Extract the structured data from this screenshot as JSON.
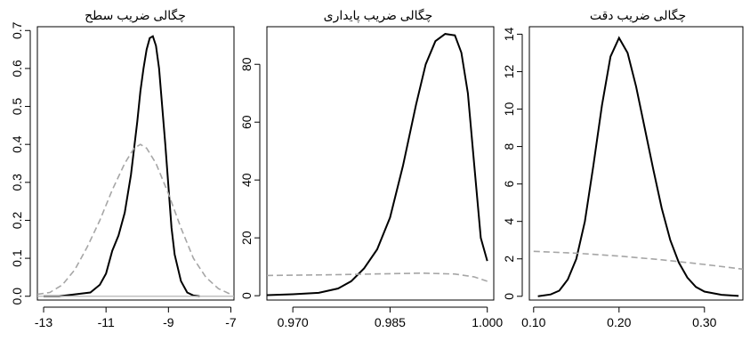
{
  "chart_data": [
    {
      "type": "line",
      "title": "چگالی ضریب سطح",
      "xlabel": "",
      "ylabel": "",
      "xlim": [
        -13.2,
        -6.9
      ],
      "ylim": [
        -0.01,
        0.71
      ],
      "xticks": [
        -13,
        -11,
        -9,
        -7
      ],
      "xtick_labels": [
        "-13",
        "-11",
        "-9",
        "-7"
      ],
      "yticks": [
        0.0,
        0.1,
        0.2,
        0.3,
        0.4,
        0.5,
        0.6,
        0.7
      ],
      "ytick_labels": [
        "0.0",
        "0.1",
        "0.2",
        "0.3",
        "0.4",
        "0.5",
        "0.6",
        "0.7"
      ],
      "grid": false,
      "series": [
        {
          "style": "solid",
          "color": "#000000",
          "x": [
            -13.0,
            -12.5,
            -12.0,
            -11.5,
            -11.2,
            -11.0,
            -10.8,
            -10.6,
            -10.4,
            -10.2,
            -10.0,
            -9.9,
            -9.8,
            -9.7,
            -9.6,
            -9.5,
            -9.4,
            -9.3,
            -9.2,
            -9.1,
            -9.0,
            -8.9,
            -8.8,
            -8.6,
            -8.4,
            -8.2,
            -8.0
          ],
          "y": [
            0.0,
            0.0,
            0.005,
            0.01,
            0.03,
            0.06,
            0.12,
            0.16,
            0.22,
            0.32,
            0.46,
            0.54,
            0.6,
            0.65,
            0.68,
            0.685,
            0.66,
            0.6,
            0.5,
            0.4,
            0.29,
            0.18,
            0.11,
            0.04,
            0.01,
            0.002,
            0.0
          ]
        },
        {
          "style": "dashed",
          "color": "#a6a6a6",
          "x": [
            -13.2,
            -12.8,
            -12.4,
            -12.0,
            -11.6,
            -11.2,
            -10.8,
            -10.4,
            -10.1,
            -9.9,
            -9.7,
            -9.4,
            -9.0,
            -8.6,
            -8.2,
            -7.8,
            -7.4,
            -7.0
          ],
          "y": [
            0.005,
            0.01,
            0.03,
            0.07,
            0.13,
            0.2,
            0.28,
            0.35,
            0.39,
            0.4,
            0.39,
            0.35,
            0.27,
            0.18,
            0.1,
            0.05,
            0.02,
            0.005
          ]
        },
        {
          "style": "baseline",
          "color": "#b5b5b5",
          "x": [
            -13.2,
            -6.9
          ],
          "y": [
            0,
            0
          ]
        }
      ]
    },
    {
      "type": "line",
      "title": "چگالی ضریب پایداری",
      "xlabel": "",
      "ylabel": "",
      "xlim": [
        0.966,
        1.001
      ],
      "ylim": [
        -1.5,
        93
      ],
      "xticks": [
        0.97,
        0.985,
        1.0
      ],
      "xtick_labels": [
        "0.970",
        "0.985",
        "1.000"
      ],
      "yticks": [
        0,
        20,
        40,
        60,
        80
      ],
      "ytick_labels": [
        "0",
        "20",
        "40",
        "60",
        "80"
      ],
      "grid": false,
      "series": [
        {
          "style": "solid",
          "color": "#000000",
          "x": [
            0.966,
            0.97,
            0.974,
            0.977,
            0.979,
            0.981,
            0.983,
            0.985,
            0.987,
            0.989,
            0.9905,
            0.992,
            0.9935,
            0.995,
            0.996,
            0.997,
            0.998,
            0.999,
            1.0
          ],
          "y": [
            0.2,
            0.5,
            1.0,
            2.5,
            5.0,
            9.5,
            16.0,
            27.0,
            45.0,
            66.0,
            80.0,
            88.0,
            90.5,
            90.0,
            84.0,
            70.0,
            45.0,
            20.0,
            12.0
          ]
        },
        {
          "style": "dashed",
          "color": "#a6a6a6",
          "x": [
            0.966,
            0.97,
            0.975,
            0.98,
            0.985,
            0.99,
            0.995,
            0.998,
            1.0
          ],
          "y": [
            7.0,
            7.1,
            7.2,
            7.4,
            7.6,
            7.8,
            7.5,
            6.5,
            5.0
          ]
        }
      ]
    },
    {
      "type": "line",
      "title": "چگالی ضریب دقت",
      "xlabel": "",
      "ylabel": "",
      "xlim": [
        0.095,
        0.345
      ],
      "ylim": [
        -0.2,
        14.4
      ],
      "xticks": [
        0.1,
        0.2,
        0.3
      ],
      "xtick_labels": [
        "0.10",
        "0.20",
        "0.30"
      ],
      "yticks": [
        0,
        2,
        4,
        6,
        8,
        10,
        12,
        14
      ],
      "ytick_labels": [
        "0",
        "2",
        "4",
        "6",
        "8",
        "10",
        "12",
        "14"
      ],
      "grid": false,
      "series": [
        {
          "style": "solid",
          "color": "#000000",
          "x": [
            0.105,
            0.12,
            0.13,
            0.14,
            0.15,
            0.16,
            0.17,
            0.18,
            0.19,
            0.2,
            0.21,
            0.22,
            0.23,
            0.24,
            0.25,
            0.26,
            0.27,
            0.28,
            0.29,
            0.3,
            0.32,
            0.34
          ],
          "y": [
            0.0,
            0.1,
            0.3,
            0.9,
            2.0,
            4.0,
            7.0,
            10.2,
            12.8,
            13.8,
            13.0,
            11.2,
            9.0,
            6.8,
            4.7,
            3.0,
            1.8,
            1.0,
            0.5,
            0.25,
            0.08,
            0.02
          ]
        },
        {
          "style": "dashed",
          "color": "#a6a6a6",
          "x": [
            0.1,
            0.15,
            0.2,
            0.25,
            0.3,
            0.345
          ],
          "y": [
            2.4,
            2.3,
            2.15,
            1.95,
            1.7,
            1.45
          ]
        }
      ]
    }
  ]
}
